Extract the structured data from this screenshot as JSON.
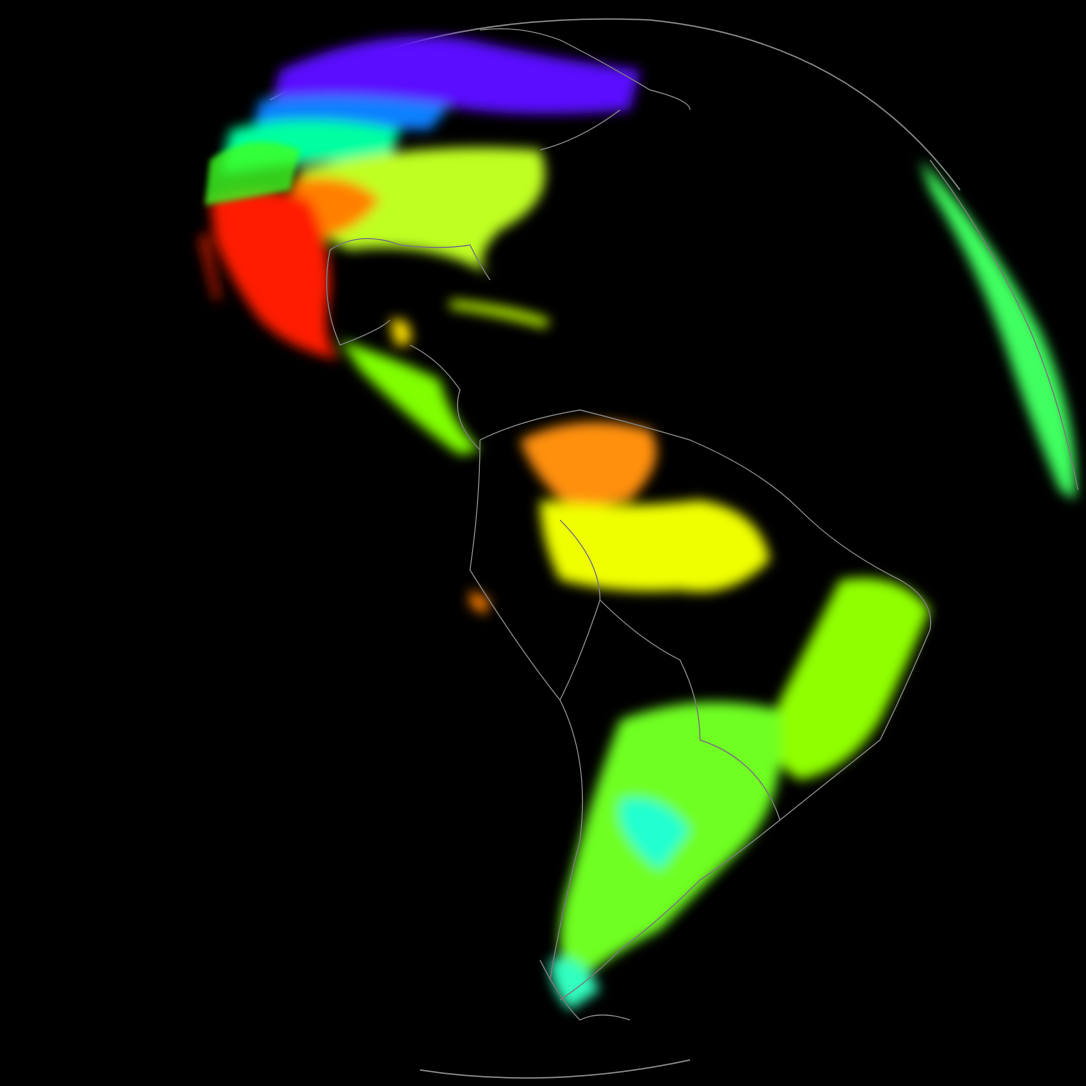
{
  "map": {
    "projection": "full-disk",
    "background": "#000000",
    "border_color": "#808080",
    "color_scale": [
      "#5a00ff",
      "#0000ff",
      "#00ffff",
      "#00ff40",
      "#80ff00",
      "#ffff00",
      "#ff9000",
      "#ff0000"
    ]
  }
}
